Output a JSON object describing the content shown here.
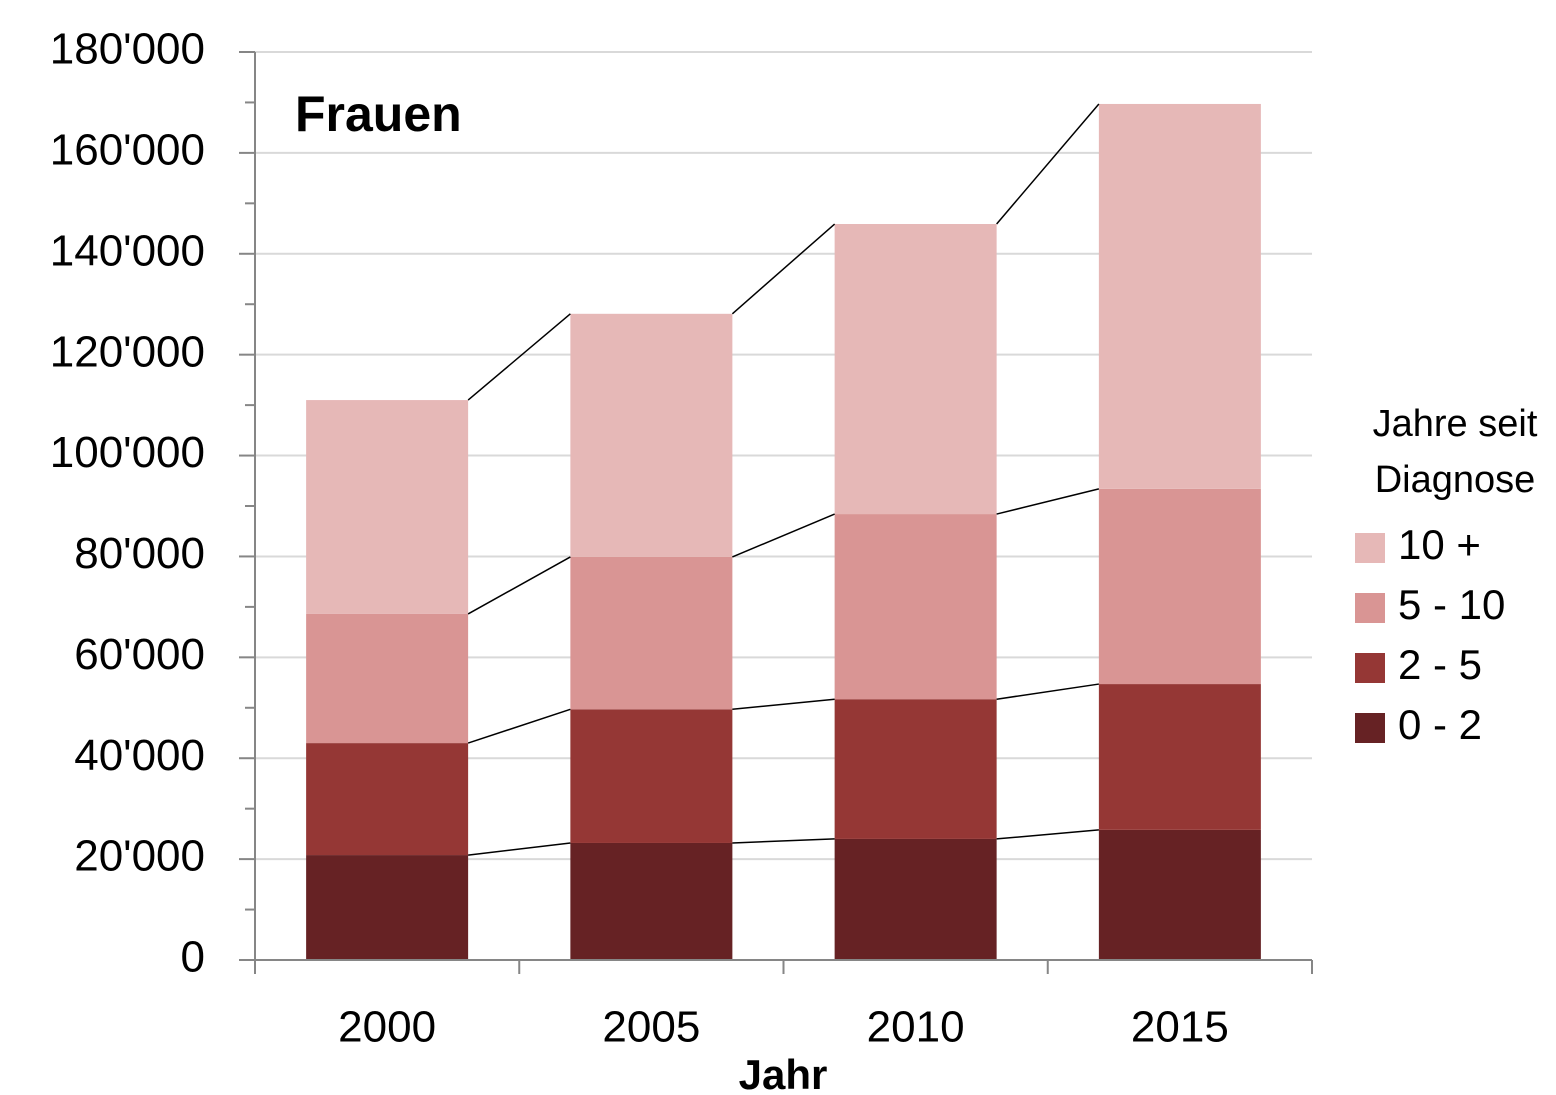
{
  "chart_data": {
    "type": "stacked_bar",
    "title": "Frauen",
    "xlabel": "Jahr",
    "categories": [
      "2000",
      "2005",
      "2010",
      "2015"
    ],
    "series": [
      {
        "name": "0 - 2",
        "color": "#662224",
        "values": [
          20800,
          23200,
          24000,
          25800
        ]
      },
      {
        "name": "2 - 5",
        "color": "#953735",
        "values": [
          22200,
          26500,
          27700,
          28900
        ]
      },
      {
        "name": "5 - 10",
        "color": "#d99594",
        "values": [
          25600,
          30200,
          36700,
          38700
        ]
      },
      {
        "name": "10 +",
        "color": "#e6b8b7",
        "values": [
          42400,
          48200,
          57500,
          76300
        ]
      }
    ],
    "legend_title": [
      "Jahre seit",
      "Diagnose"
    ],
    "legend": "right",
    "ylim": [
      0,
      180000
    ],
    "yticks": [
      0,
      {
        "value": 20000,
        "label": "20'000"
      },
      {
        "value": 40000,
        "label": "40'000"
      },
      {
        "value": 60000,
        "label": "60'000"
      },
      {
        "value": 80000,
        "label": "80'000"
      },
      {
        "value": 100000,
        "label": "100'000"
      },
      {
        "value": 120000,
        "label": "120'000"
      },
      {
        "value": 140000,
        "label": "140'000"
      },
      {
        "value": 160000,
        "label": "160'000"
      },
      {
        "value": 180000,
        "label": "180'000"
      }
    ],
    "yticks_minor": [
      10000,
      30000,
      50000,
      70000,
      90000,
      110000,
      130000,
      150000,
      170000
    ],
    "grid": true,
    "series_lines": true
  }
}
